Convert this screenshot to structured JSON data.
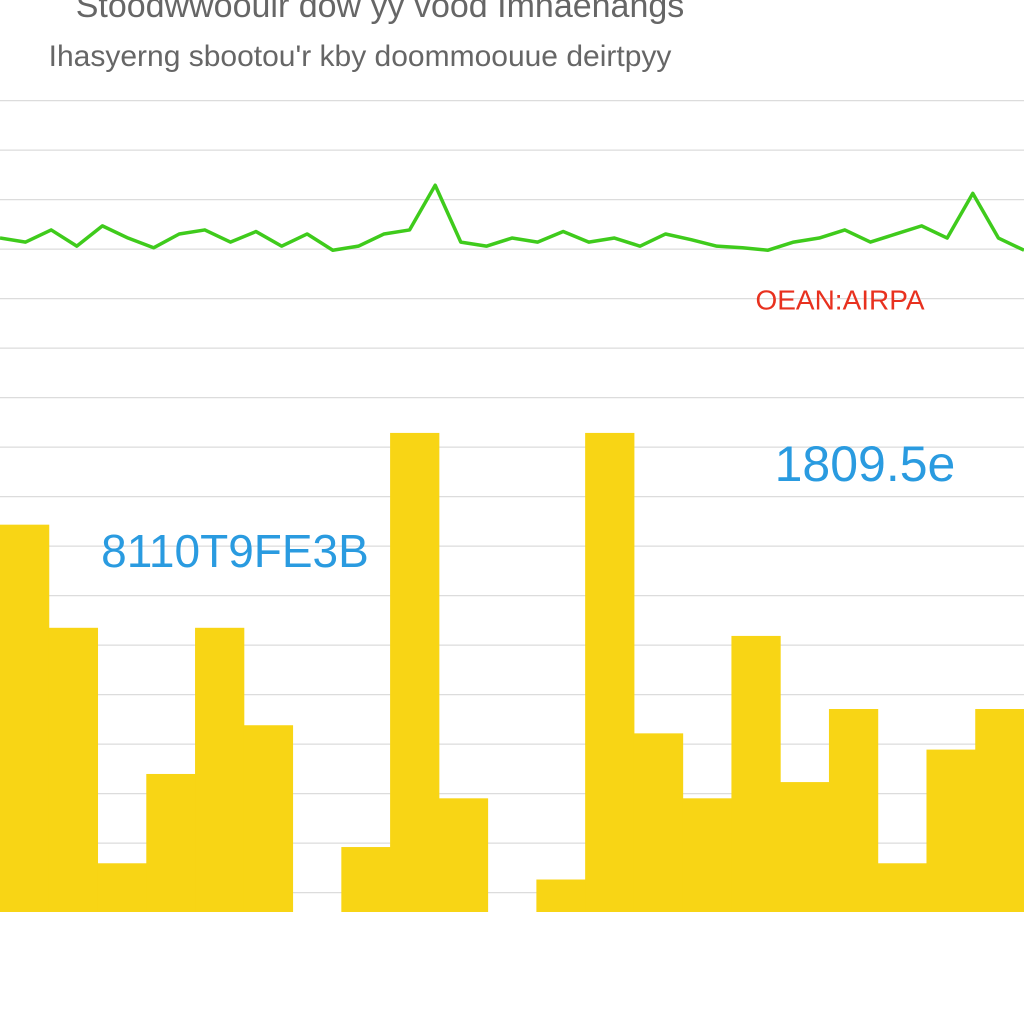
{
  "chart_data": [
    {
      "type": "line",
      "title": "Stoodwwoouir dow yy vood Imnaenangs",
      "subtitle": "Ihasyerng sbootou'r kby doommoouue deirtpyy",
      "x": [
        0,
        1,
        2,
        3,
        4,
        5,
        6,
        7,
        8,
        9,
        10,
        11,
        12,
        13,
        14,
        15,
        16,
        17,
        18,
        19,
        20,
        21,
        22,
        23,
        24,
        25,
        26,
        27,
        28,
        29,
        30,
        31,
        32,
        33,
        34,
        35,
        36,
        37,
        38,
        39,
        40
      ],
      "xlim": [
        0,
        40
      ],
      "ylim": [
        0,
        100
      ],
      "series": [
        {
          "color": "#3fcb1c",
          "values": [
            83,
            82.5,
            84,
            82,
            84.5,
            83,
            81.8,
            83.5,
            84,
            82.5,
            83.8,
            82,
            83.5,
            81.5,
            82,
            83.5,
            84,
            89.5,
            82.5,
            82,
            83,
            82.5,
            83.8,
            82.5,
            83,
            82,
            83.5,
            82.8,
            82,
            81.8,
            81.5,
            82.5,
            83,
            84,
            82.5,
            83.5,
            84.5,
            83,
            88.5,
            83,
            81.5
          ]
        }
      ]
    },
    {
      "type": "bar",
      "categories": [
        null,
        null,
        null,
        null,
        null,
        null,
        null,
        null,
        null,
        null,
        null,
        null,
        null,
        null,
        null,
        null,
        null,
        null,
        null,
        null,
        null
      ],
      "values": [
        47.7,
        35,
        6,
        17,
        35,
        23,
        0,
        8,
        59,
        14,
        0,
        4,
        59,
        22,
        14,
        34,
        16,
        25,
        6,
        20,
        25
      ],
      "color": "#f8d515",
      "ylim": [
        0,
        100
      ],
      "annotations": [
        {
          "text": "OEAN:AIRPA",
          "color": "#e8311f"
        },
        {
          "text": "1809.5e",
          "color": "#2a9be0"
        },
        {
          "text": "8110T9FE3B",
          "color": "#2a9be0"
        }
      ]
    }
  ]
}
